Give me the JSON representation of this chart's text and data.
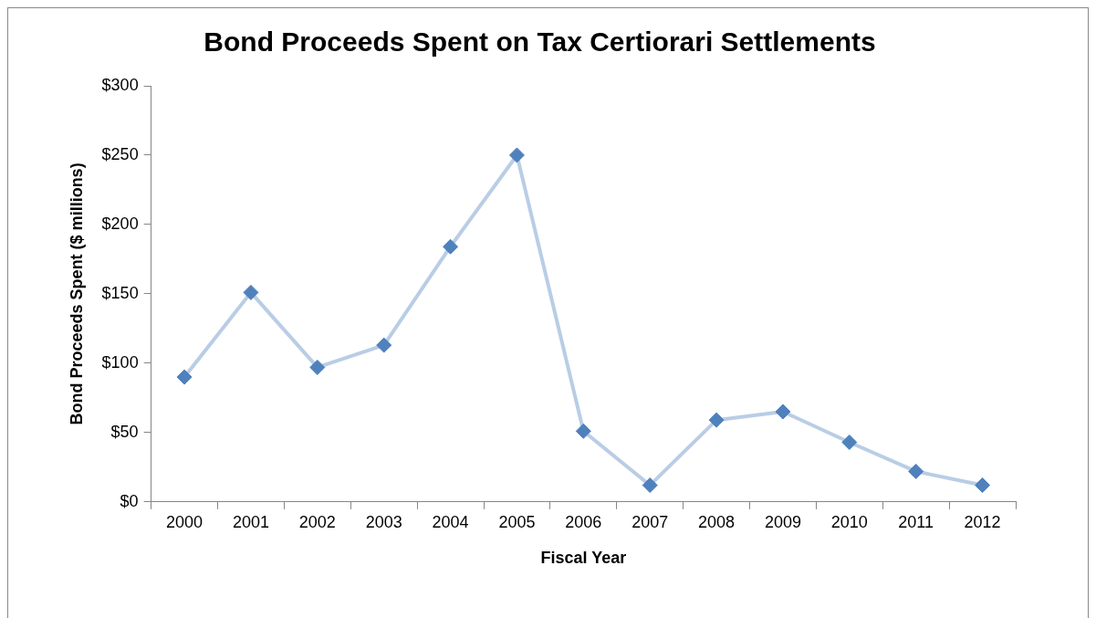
{
  "chart_data": {
    "type": "line",
    "title": "Bond Proceeds Spent on Tax Certiorari Settlements",
    "xlabel": "Fiscal Year",
    "ylabel": "Bond Proceeds Spent ($ millions)",
    "categories": [
      "2000",
      "2001",
      "2002",
      "2003",
      "2004",
      "2005",
      "2006",
      "2007",
      "2008",
      "2009",
      "2010",
      "2011",
      "2012"
    ],
    "series": [
      {
        "color": "#4f81bd",
        "values": [
          90,
          151,
          97,
          113,
          184,
          250,
          51,
          12,
          59,
          65,
          43,
          22,
          12
        ]
      }
    ],
    "ylim": [
      0,
      300
    ],
    "yticks": [
      {
        "value": 0,
        "label": "$0"
      },
      {
        "value": 50,
        "label": "$50"
      },
      {
        "value": 100,
        "label": "$100"
      },
      {
        "value": 150,
        "label": "$150"
      },
      {
        "value": 200,
        "label": "$200"
      },
      {
        "value": 250,
        "label": "$250"
      },
      {
        "value": 300,
        "label": "$300"
      }
    ],
    "grid": false,
    "legend": false,
    "marker": "diamond",
    "line_style": "solid"
  }
}
